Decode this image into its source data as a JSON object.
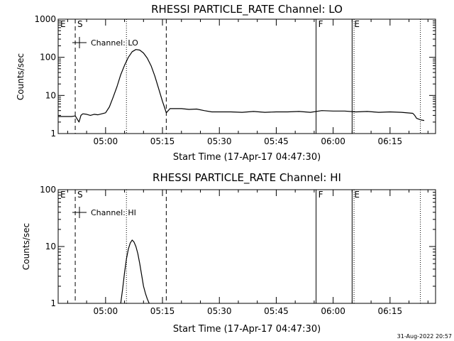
{
  "footer_timestamp": "31-Aug-2022 20:57",
  "chart_data": [
    {
      "type": "line",
      "title": "RHESSI PARTICLE_RATE Channel: LO",
      "xlabel": "Start Time (17-Apr-17 04:47:30)",
      "ylabel": "Counts/sec",
      "y_scale": "log",
      "ylim": [
        1,
        1000
      ],
      "xlim": [
        "04:47:30",
        "06:27:00"
      ],
      "y_ticks": [
        {
          "value": 1,
          "label": "1"
        },
        {
          "value": 10,
          "label": "10"
        },
        {
          "value": 100,
          "label": "100"
        },
        {
          "value": 1000,
          "label": "1000"
        }
      ],
      "x_ticks": [
        "05:00",
        "05:15",
        "05:30",
        "05:45",
        "06:00",
        "06:15"
      ],
      "legend": {
        "label": "Channel: LO",
        "position": "top-left"
      },
      "markers": [
        {
          "label": "E",
          "time": "04:47:30",
          "style": "solid"
        },
        {
          "label": "S",
          "time": "04:52:00",
          "style": "dashed"
        },
        {
          "label": "",
          "time": "05:05:30",
          "style": "dotted"
        },
        {
          "label": "",
          "time": "05:16:00",
          "style": "dashed"
        },
        {
          "label": "F",
          "time": "05:55:30",
          "style": "solid"
        },
        {
          "label": "E",
          "time": "06:05:00",
          "style": "solid"
        },
        {
          "label": "",
          "time": "06:05:30",
          "style": "dotted"
        },
        {
          "label": "",
          "time": "06:23:00",
          "style": "dotted"
        }
      ],
      "series": [
        {
          "x": [
            "04:47:30",
            "04:48:00",
            "04:49:00",
            "04:50:00",
            "04:51:00",
            "04:52:00",
            "04:53:00",
            "04:53:30",
            "04:54:00",
            "04:55:00",
            "04:56:00",
            "04:57:00",
            "04:58:00",
            "04:59:00",
            "05:00:00",
            "05:01:00",
            "05:02:00",
            "05:03:00",
            "05:04:00",
            "05:05:00",
            "05:06:00",
            "05:07:00",
            "05:08:00",
            "05:09:00",
            "05:10:00",
            "05:11:00",
            "05:12:00",
            "05:13:00",
            "05:14:00",
            "05:15:00",
            "05:15:30",
            "05:16:00",
            "05:17:00",
            "05:20:00",
            "05:22:00",
            "05:24:00",
            "05:26:00",
            "05:28:00",
            "05:30:00",
            "05:33:00",
            "05:36:00",
            "05:39:00",
            "05:42:00",
            "05:45:00",
            "05:48:00",
            "05:51:00",
            "05:54:00",
            "05:57:00",
            "06:00:00",
            "06:03:00",
            "06:06:00",
            "06:09:00",
            "06:12:00",
            "06:15:00",
            "06:18:00",
            "06:21:00",
            "06:21:30",
            "06:22:00",
            "06:23:00",
            "06:24:00"
          ],
          "y": [
            2.8,
            2.8,
            2.8,
            2.8,
            2.8,
            2.9,
            2.0,
            3.0,
            3.3,
            3.2,
            3.0,
            3.2,
            3.1,
            3.3,
            3.5,
            5.0,
            9.0,
            17,
            35,
            62,
            100,
            140,
            160,
            155,
            130,
            95,
            60,
            32,
            15,
            7.0,
            5.0,
            3.5,
            4.5,
            4.5,
            4.3,
            4.4,
            4.0,
            3.7,
            3.7,
            3.7,
            3.6,
            3.8,
            3.6,
            3.7,
            3.7,
            3.8,
            3.6,
            4.0,
            3.9,
            3.9,
            3.7,
            3.8,
            3.6,
            3.7,
            3.6,
            3.4,
            3.0,
            2.5,
            2.3,
            2.2
          ]
        }
      ]
    },
    {
      "type": "line",
      "title": "RHESSI PARTICLE_RATE Channel: HI",
      "xlabel": "Start Time (17-Apr-17 04:47:30)",
      "ylabel": "Counts/sec",
      "y_scale": "log",
      "ylim": [
        1,
        100
      ],
      "xlim": [
        "04:47:30",
        "06:27:00"
      ],
      "y_ticks": [
        {
          "value": 1,
          "label": "1"
        },
        {
          "value": 10,
          "label": "10"
        },
        {
          "value": 100,
          "label": "100"
        }
      ],
      "x_ticks": [
        "05:00",
        "05:15",
        "05:30",
        "05:45",
        "06:00",
        "06:15"
      ],
      "legend": {
        "label": "Channel: HI",
        "position": "top-left"
      },
      "markers": [
        {
          "label": "E",
          "time": "04:47:30",
          "style": "solid"
        },
        {
          "label": "S",
          "time": "04:52:00",
          "style": "dashed"
        },
        {
          "label": "",
          "time": "05:05:30",
          "style": "dotted"
        },
        {
          "label": "",
          "time": "05:16:00",
          "style": "dashed"
        },
        {
          "label": "F",
          "time": "05:55:30",
          "style": "solid"
        },
        {
          "label": "E",
          "time": "06:05:00",
          "style": "solid"
        },
        {
          "label": "",
          "time": "06:05:30",
          "style": "dotted"
        },
        {
          "label": "",
          "time": "06:23:00",
          "style": "dotted"
        }
      ],
      "series": [
        {
          "x": [
            "05:04:00",
            "05:04:30",
            "05:05:00",
            "05:05:30",
            "05:06:00",
            "05:06:30",
            "05:07:00",
            "05:07:30",
            "05:08:00",
            "05:08:30",
            "05:09:00",
            "05:09:30",
            "05:10:00",
            "05:10:30",
            "05:11:00",
            "05:11:30"
          ],
          "y": [
            1.0,
            1.8,
            3.5,
            6.0,
            9.0,
            11.5,
            13.0,
            12.0,
            10.0,
            7.5,
            5.0,
            3.2,
            2.0,
            1.5,
            1.2,
            1.0
          ]
        }
      ]
    }
  ]
}
